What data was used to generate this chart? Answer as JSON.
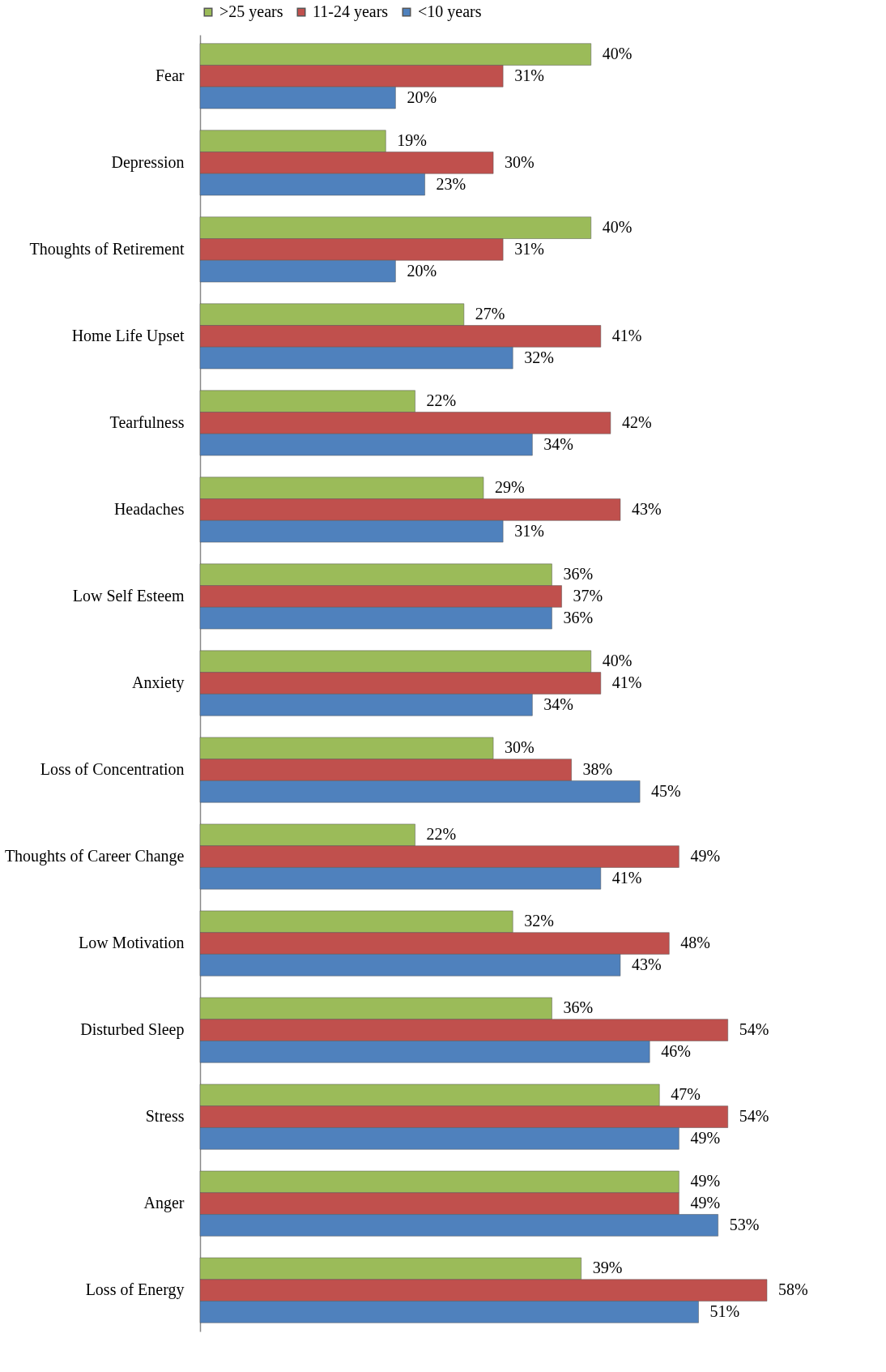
{
  "chart_data": {
    "type": "bar",
    "orientation": "horizontal",
    "categories": [
      "Fear",
      "Depression",
      "Thoughts of Retirement",
      "Home Life Upset",
      "Tearfulness",
      "Headaches",
      "Low Self Esteem",
      "Anxiety",
      "Loss of Concentration",
      "Thoughts of Career Change",
      "Low Motivation",
      "Disturbed Sleep",
      "Stress",
      "Anger",
      "Loss of Energy"
    ],
    "series": [
      {
        "name": ">25 years",
        "color": "#9bbb59",
        "values": [
          40,
          19,
          40,
          27,
          22,
          29,
          36,
          40,
          30,
          22,
          32,
          36,
          47,
          49,
          39
        ],
        "value_labels": [
          "40%",
          "19%",
          "40%",
          "27%",
          "22%",
          "29%",
          "36%",
          "40%",
          "30%",
          "22%",
          "32%",
          "36%",
          "47%",
          "49%",
          "39%"
        ]
      },
      {
        "name": "11-24 years",
        "color": "#c0504d",
        "values": [
          31,
          30,
          31,
          41,
          42,
          43,
          37,
          41,
          38,
          49,
          48,
          54,
          54,
          49,
          58
        ],
        "value_labels": [
          "31%",
          "30%",
          "31%",
          "41%",
          "42%",
          "43%",
          "37%",
          "41%",
          "38%",
          "49%",
          "48%",
          "54%",
          "54%",
          "49%",
          "58%"
        ]
      },
      {
        "name": "<10 years",
        "color": "#4f81bd",
        "values": [
          20,
          23,
          20,
          32,
          34,
          31,
          36,
          34,
          45,
          41,
          43,
          46,
          49,
          53,
          51
        ],
        "value_labels": [
          "20%",
          "23%",
          "20%",
          "32%",
          "34%",
          "31%",
          "36%",
          "34%",
          "45%",
          "41%",
          "43%",
          "46%",
          "49%",
          "53%",
          "51%"
        ]
      }
    ],
    "legend": "top"
  }
}
